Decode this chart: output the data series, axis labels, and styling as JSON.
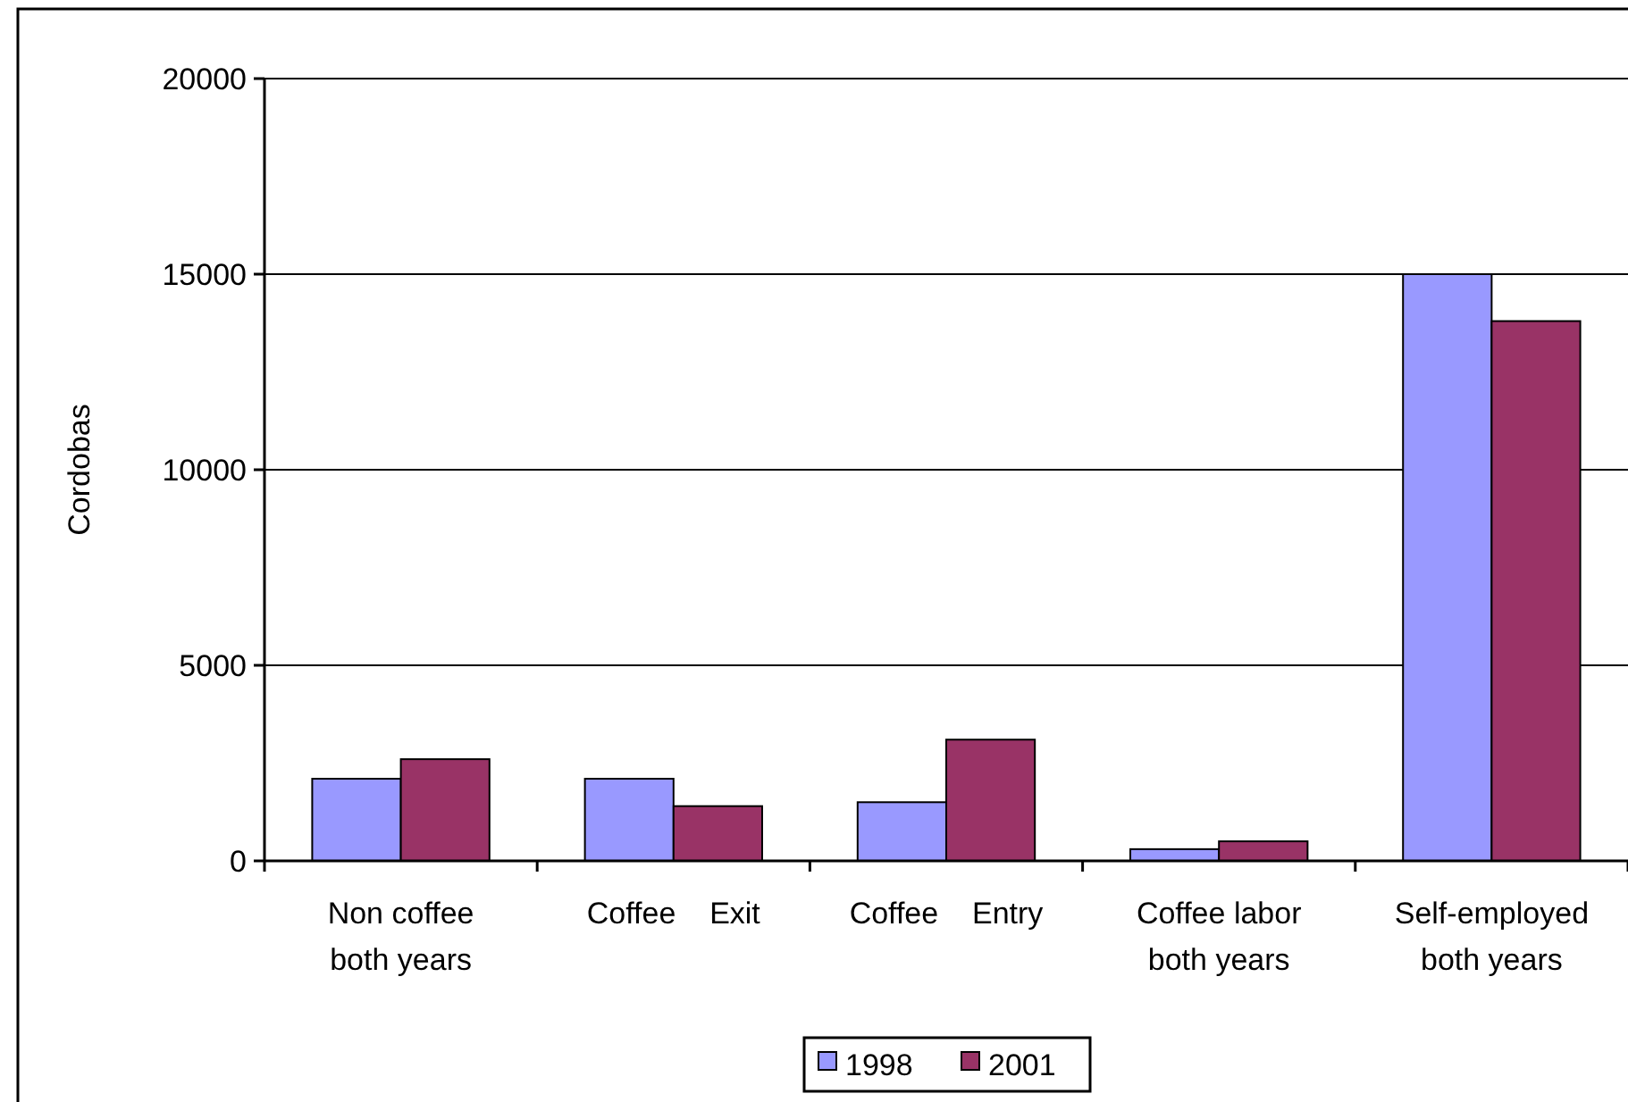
{
  "chart_data": {
    "type": "bar",
    "ylabel": "Cordobas",
    "categories": [
      "Non coffee\nboth years",
      "Coffee    Exit",
      "Coffee    Entry",
      "Coffee labor\nboth years",
      "Self-employed\nboth years"
    ],
    "series": [
      {
        "name": "1998",
        "color": "#9999ff",
        "values": [
          2100,
          2100,
          1500,
          300,
          15000
        ]
      },
      {
        "name": "2001",
        "color": "#993366",
        "values": [
          2600,
          1400,
          3100,
          500,
          13800
        ]
      }
    ],
    "ylim": [
      0,
      20000
    ],
    "yticks": [
      0,
      5000,
      10000,
      15000,
      20000
    ],
    "grid": "y",
    "legend": "bottom"
  }
}
